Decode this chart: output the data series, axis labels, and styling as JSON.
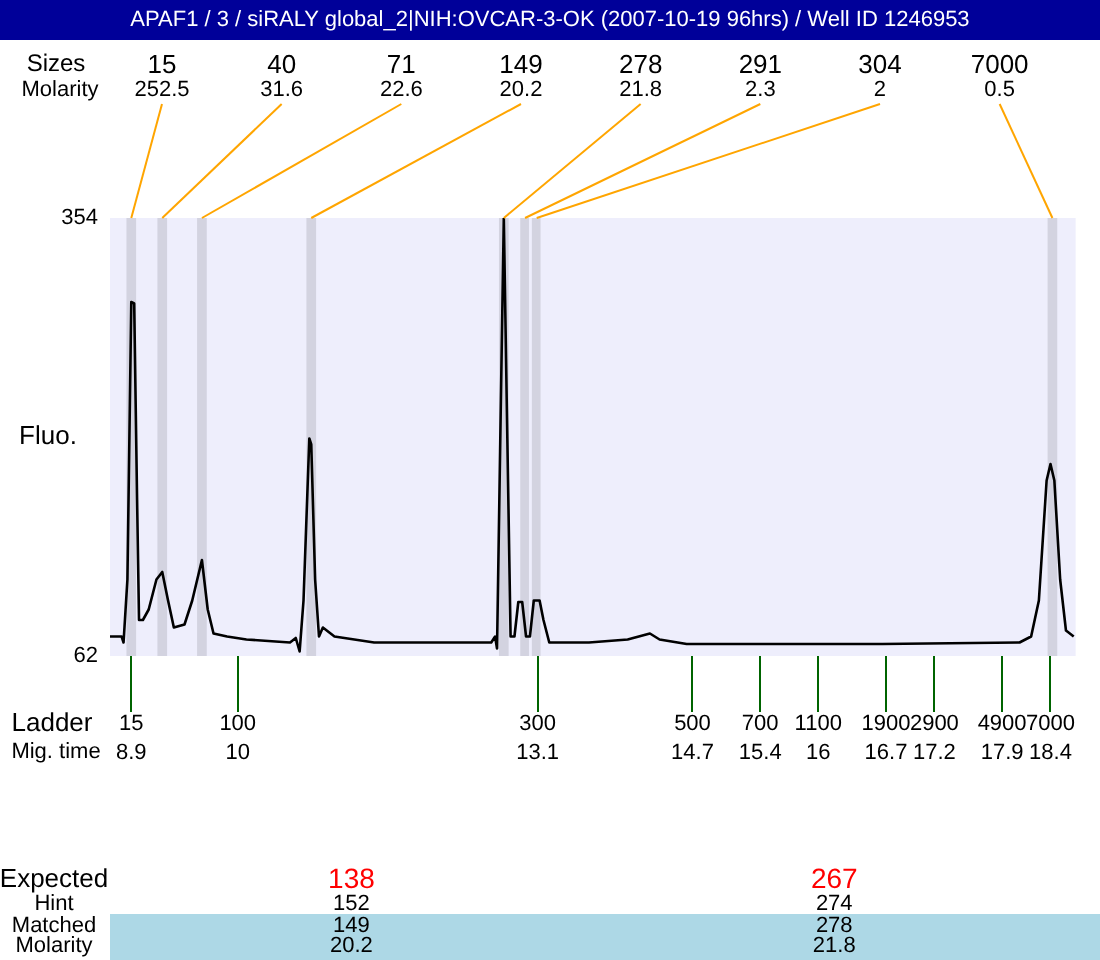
{
  "chart_data": {
    "type": "line",
    "title": "APAF1  / 3 / siRALY global_2|NIH:OVCAR-3-OK (2007-10-19 96hrs) / Well ID 1246953",
    "ylabel": "Fluo.",
    "marker": "none",
    "x": [
      8.68,
      8.8,
      8.82,
      8.86,
      8.9,
      8.93,
      8.96,
      8.98,
      9.02,
      9.08,
      9.16,
      9.22,
      9.28,
      9.34,
      9.45,
      9.53,
      9.63,
      9.69,
      9.75,
      9.89,
      10.09,
      10.54,
      10.6,
      10.64,
      10.68,
      10.74,
      10.76,
      10.8,
      10.84,
      10.88,
      11.0,
      11.41,
      12.62,
      12.66,
      12.68,
      12.72,
      12.75,
      12.78,
      12.82,
      12.86,
      12.9,
      12.94,
      12.98,
      13.02,
      13.06,
      13.12,
      13.16,
      13.22,
      13.63,
      14.03,
      14.26,
      14.36,
      14.64,
      16.66,
      18.08,
      18.2,
      18.28,
      18.36,
      18.4,
      18.44,
      18.5,
      18.56,
      18.64
    ],
    "series": [
      {
        "color": "#000000",
        "values": [
          75,
          75,
          71,
          113,
          298,
          297,
          166,
          86,
          86,
          93,
          113,
          118,
          99,
          81,
          83,
          99,
          126,
          93,
          77,
          75,
          73,
          71,
          74,
          65,
          99,
          207,
          203,
          113,
          75,
          81,
          75,
          71,
          71,
          75,
          67,
          233,
          354,
          233,
          75,
          75,
          98,
          98,
          75,
          75,
          99,
          99,
          86,
          71,
          71,
          73,
          77,
          73,
          70,
          70,
          71,
          75,
          99,
          179,
          190,
          179,
          113,
          79,
          75
        ]
      }
    ],
    "xlim": [
      8.68,
      18.66
    ],
    "xticks": [
      8.9,
      10,
      13.1,
      14.7,
      15.4,
      16,
      16.7,
      17.2,
      17.9,
      18.4
    ],
    "ylim": [
      62,
      354
    ],
    "yticks": [
      62,
      354
    ],
    "bands": [
      {
        "axis": "x",
        "from": 8.85,
        "to": 8.95,
        "label": "15",
        "color": "#d3d3e0"
      },
      {
        "axis": "x",
        "from": 9.17,
        "to": 9.27,
        "label": "40",
        "color": "#d3d3e0"
      },
      {
        "axis": "x",
        "from": 9.58,
        "to": 9.68,
        "label": "71",
        "color": "#d3d3e0"
      },
      {
        "axis": "x",
        "from": 10.71,
        "to": 10.81,
        "label": "149",
        "color": "#d3d3e0"
      },
      {
        "axis": "x",
        "from": 12.7,
        "to": 12.8,
        "label": "278",
        "color": "#d3d3e0"
      },
      {
        "axis": "x",
        "from": 12.92,
        "to": 13.01,
        "label": "291",
        "color": "#d3d3e0"
      },
      {
        "axis": "x",
        "from": 13.04,
        "to": 13.13,
        "label": "304",
        "color": "#d3d3e0"
      },
      {
        "axis": "x",
        "from": 18.37,
        "to": 18.47,
        "label": "7000",
        "color": "#d3d3e0"
      }
    ],
    "annotations": [
      {
        "text": "252.5",
        "x": 8.9,
        "y": 354
      },
      {
        "text": "31.6",
        "x": 9.22,
        "y": 354
      },
      {
        "text": "22.6",
        "x": 9.63,
        "y": 354
      },
      {
        "text": "20.2",
        "x": 10.76,
        "y": 354
      },
      {
        "text": "21.8",
        "x": 12.75,
        "y": 354
      },
      {
        "text": "2.3",
        "x": 12.97,
        "y": 354
      },
      {
        "text": "2",
        "x": 13.09,
        "y": 354
      },
      {
        "text": "0.5",
        "x": 18.42,
        "y": 354
      },
      "15",
      "100",
      "300",
      "500",
      "700",
      "1100",
      "1900",
      "2900",
      "4900",
      "7000",
      "Sizes",
      "Molarity",
      "Ladder",
      "Mig. time",
      "Expected",
      "Hint",
      "Matched",
      "Molarity",
      "138",
      "152",
      "149",
      "20.2",
      "267",
      "274",
      "278",
      "21.8"
    ]
  }
}
